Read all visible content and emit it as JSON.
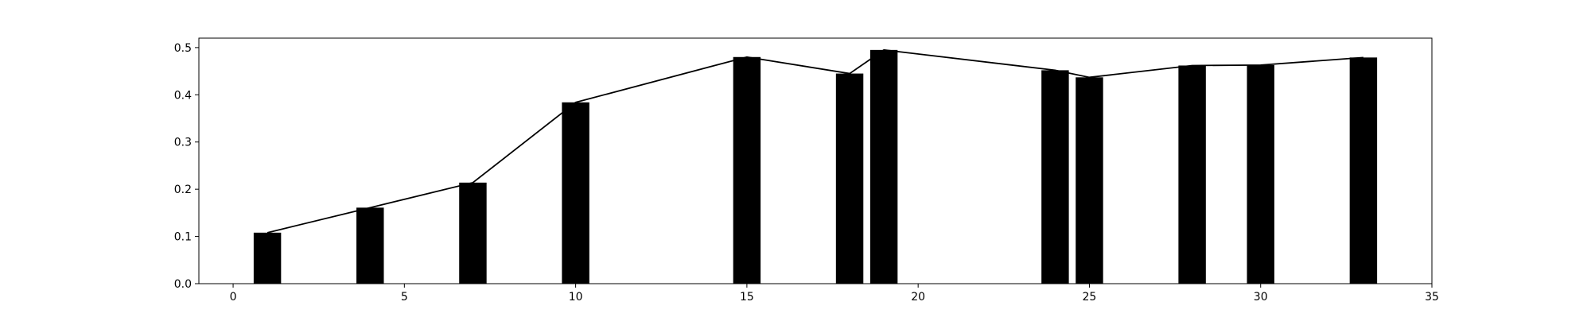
{
  "chart_data": {
    "type": "bar",
    "title": "",
    "xlabel": "",
    "ylabel": "",
    "xlim": [
      -1,
      35
    ],
    "ylim": [
      0,
      0.52
    ],
    "xticks": [
      0,
      5,
      10,
      15,
      20,
      25,
      30,
      35
    ],
    "yticks": [
      0.0,
      0.1,
      0.2,
      0.3,
      0.4,
      0.5
    ],
    "xtick_labels": [
      "0",
      "5",
      "10",
      "15",
      "20",
      "25",
      "30",
      "35"
    ],
    "ytick_labels": [
      "0.0",
      "0.1",
      "0.2",
      "0.3",
      "0.4",
      "0.5"
    ],
    "grid": false,
    "bar_color": "#000000",
    "line_color": "#000000",
    "bar_width": 0.8,
    "x": [
      1,
      4,
      7,
      10,
      15,
      18,
      19,
      24,
      25,
      28,
      30,
      33
    ],
    "values": [
      0.108,
      0.161,
      0.214,
      0.384,
      0.48,
      0.445,
      0.495,
      0.452,
      0.437,
      0.462,
      0.463,
      0.479
    ],
    "series": [
      {
        "type": "bar",
        "values": [
          0.108,
          0.161,
          0.214,
          0.384,
          0.48,
          0.445,
          0.495,
          0.452,
          0.437,
          0.462,
          0.463,
          0.479
        ]
      },
      {
        "type": "line",
        "values": [
          0.108,
          0.161,
          0.214,
          0.384,
          0.48,
          0.445,
          0.495,
          0.452,
          0.437,
          0.462,
          0.463,
          0.479
        ]
      }
    ]
  }
}
